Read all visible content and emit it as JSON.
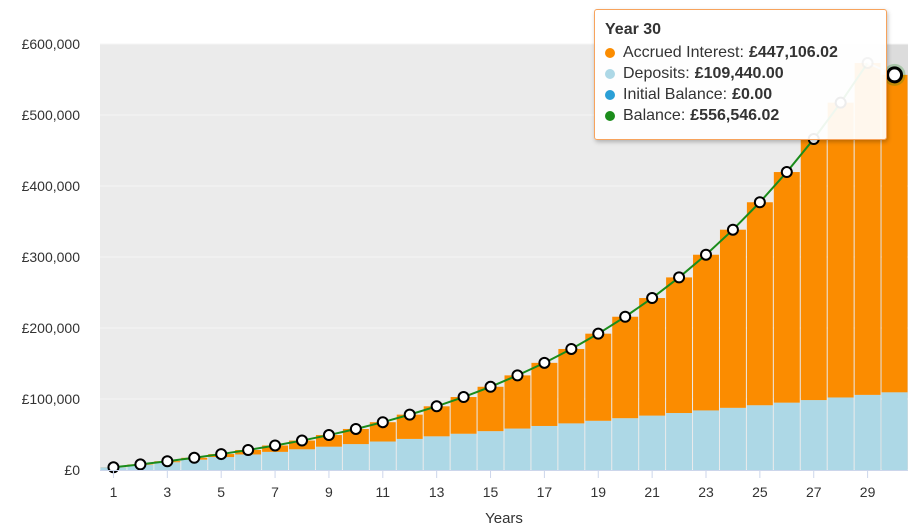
{
  "chart_data": {
    "type": "bar",
    "stacked": true,
    "xlabel": "Years",
    "ylabel": "",
    "ylim": [
      0,
      600000
    ],
    "y_ticks": [
      {
        "value": 0,
        "label": "£0"
      },
      {
        "value": 100000,
        "label": "£100,000"
      },
      {
        "value": 200000,
        "label": "£200,000"
      },
      {
        "value": 300000,
        "label": "£300,000"
      },
      {
        "value": 400000,
        "label": "£400,000"
      },
      {
        "value": 500000,
        "label": "£500,000"
      },
      {
        "value": 600000,
        "label": "£600,000"
      }
    ],
    "x_ticks": [
      "1",
      "3",
      "5",
      "7",
      "9",
      "11",
      "13",
      "15",
      "17",
      "19",
      "21",
      "23",
      "25",
      "27",
      "29"
    ],
    "categories": [
      1,
      2,
      3,
      4,
      5,
      6,
      7,
      8,
      9,
      10,
      11,
      12,
      13,
      14,
      15,
      16,
      17,
      18,
      19,
      20,
      21,
      22,
      23,
      24,
      25,
      26,
      27,
      28,
      29,
      30
    ],
    "series": [
      {
        "name": "Deposits",
        "color": "#add8e6",
        "values": [
          3648,
          7296,
          10944,
          14592,
          18240,
          21888,
          25536,
          29184,
          32832,
          36480,
          40128,
          43776,
          47424,
          51072,
          54720,
          58368,
          62016,
          65664,
          69312,
          72960,
          76608,
          80256,
          83904,
          87552,
          91200,
          94848,
          98496,
          102144,
          105792,
          109440
        ]
      },
      {
        "name": "Accrued Interest",
        "color": "#fb8c00",
        "values": [
          150,
          600,
          1400,
          2600,
          4200,
          6300,
          9000,
          12300,
          16400,
          21300,
          27200,
          34200,
          42300,
          51700,
          62500,
          74900,
          88900,
          104800,
          122700,
          142900,
          165600,
          191000,
          219300,
          250900,
          285900,
          324800,
          367700,
          415200,
          467400,
          447106.02
        ]
      }
    ],
    "balance_line": {
      "name": "Balance",
      "color": "#1b8c1b",
      "values": [
        3798,
        7896,
        12344,
        17192,
        22440,
        28188,
        34536,
        41484,
        49232,
        57780,
        67328,
        77976,
        89724,
        102772,
        117220,
        133268,
        150916,
        170464,
        192012,
        215860,
        242208,
        271256,
        303204,
        338452,
        377100,
        419648,
        466196,
        517344,
        573192,
        556546.02
      ]
    },
    "tooltip": {
      "title": "Year 30",
      "rows": [
        {
          "name": "Accrued Interest",
          "value": "£447,106.02",
          "color": "#fb8c00"
        },
        {
          "name": "Deposits",
          "value": "£109,440.00",
          "color": "#add8e6"
        },
        {
          "name": "Initial Balance",
          "value": "£0.00",
          "color": "#2a9fd6"
        },
        {
          "name": "Balance",
          "value": "£556,546.02",
          "color": "#1b8c1b"
        }
      ]
    },
    "legend": "none",
    "grid": true
  }
}
